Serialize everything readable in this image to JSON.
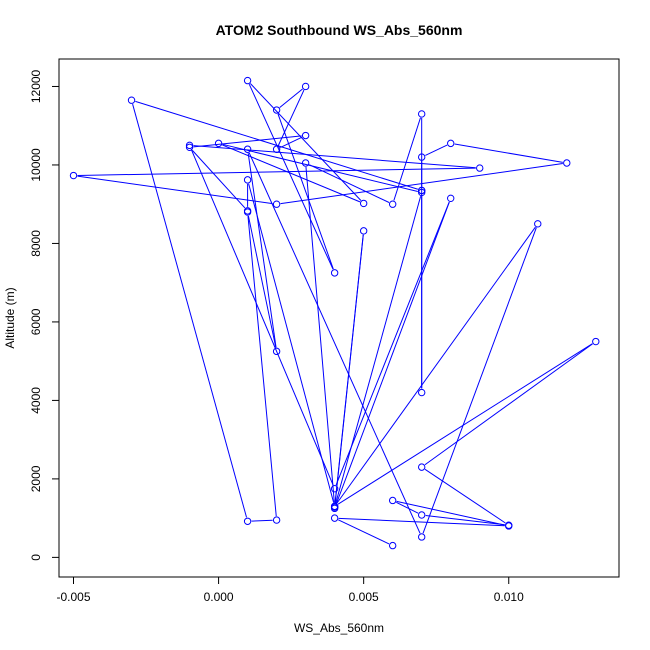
{
  "chart_data": {
    "type": "line",
    "title": "ATOM2 Southbound WS_Abs_560nm",
    "xlabel": "WS_Abs_560nm",
    "ylabel": "Altitude (m)",
    "xlim": [
      -0.0055,
      0.0138
    ],
    "ylim": [
      -500,
      12700
    ],
    "x_ticks": [
      -0.005,
      0.0,
      0.005,
      0.01
    ],
    "x_tick_labels": [
      "-0.005",
      "0.000",
      "0.005",
      "0.010"
    ],
    "y_ticks": [
      0,
      2000,
      4000,
      6000,
      8000,
      10000,
      12000
    ],
    "y_tick_labels": [
      "0",
      "2000",
      "4000",
      "6000",
      "8000",
      "10000",
      "12000"
    ],
    "grid": false,
    "color": "#0000ff",
    "series": [
      {
        "values": [
          [
            0.006,
            300
          ],
          [
            0.004,
            1000
          ],
          [
            0.01,
            800
          ],
          [
            0.006,
            1450
          ],
          [
            0.007,
            1080
          ],
          [
            0.01,
            820
          ],
          [
            0.007,
            2300
          ],
          [
            0.013,
            5500
          ],
          [
            0.004,
            1300
          ],
          [
            0.011,
            8500
          ],
          [
            0.007,
            520
          ],
          [
            0.001,
            10400
          ],
          [
            0.002,
            5250
          ],
          [
            0.001,
            8800
          ],
          [
            0.002,
            950
          ],
          [
            0.001,
            920
          ],
          [
            -0.003,
            11650
          ],
          [
            0.007,
            9350
          ],
          [
            0.007,
            4200
          ],
          [
            0.007,
            10200
          ],
          [
            0.008,
            10550
          ],
          [
            0.012,
            10050
          ],
          [
            0.002,
            9000
          ],
          [
            -0.005,
            9730
          ],
          [
            0.009,
            9920
          ],
          [
            -0.001,
            10500
          ],
          [
            0.004,
            1750
          ],
          [
            0.008,
            9150
          ],
          [
            0.004,
            1250
          ],
          [
            0.005,
            8320
          ],
          [
            0.004,
            1280
          ],
          [
            0.007,
            9300
          ],
          [
            0.0,
            10550
          ],
          [
            0.005,
            9020
          ],
          [
            0.001,
            12150
          ],
          [
            0.004,
            7250
          ],
          [
            0.002,
            11400
          ],
          [
            0.003,
            12000
          ],
          [
            0.002,
            10400
          ],
          [
            0.003,
            10750
          ],
          [
            -0.001,
            10450
          ],
          [
            0.001,
            8830
          ],
          [
            0.001,
            9620
          ],
          [
            0.004,
            1300
          ],
          [
            0.003,
            10050
          ],
          [
            0.006,
            9000
          ],
          [
            0.007,
            11300
          ],
          [
            0.007,
            9350
          ]
        ]
      }
    ]
  }
}
